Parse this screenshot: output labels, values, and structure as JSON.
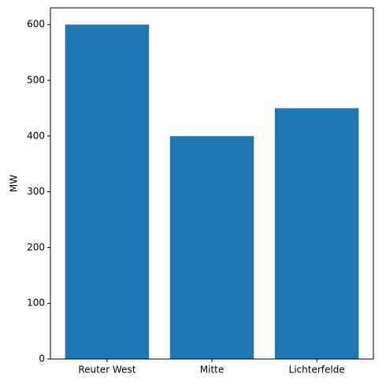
{
  "chart_data": {
    "type": "bar",
    "y_label": "MW",
    "categories": [
      "Reuter West",
      "Mitte",
      "Lichterfelde"
    ],
    "values": [
      600,
      400,
      450
    ],
    "color": "#1f77b4",
    "ylim": [
      0,
      630
    ],
    "yticks": [
      0,
      100,
      200,
      300,
      400,
      500,
      600
    ],
    "grid": false
  }
}
